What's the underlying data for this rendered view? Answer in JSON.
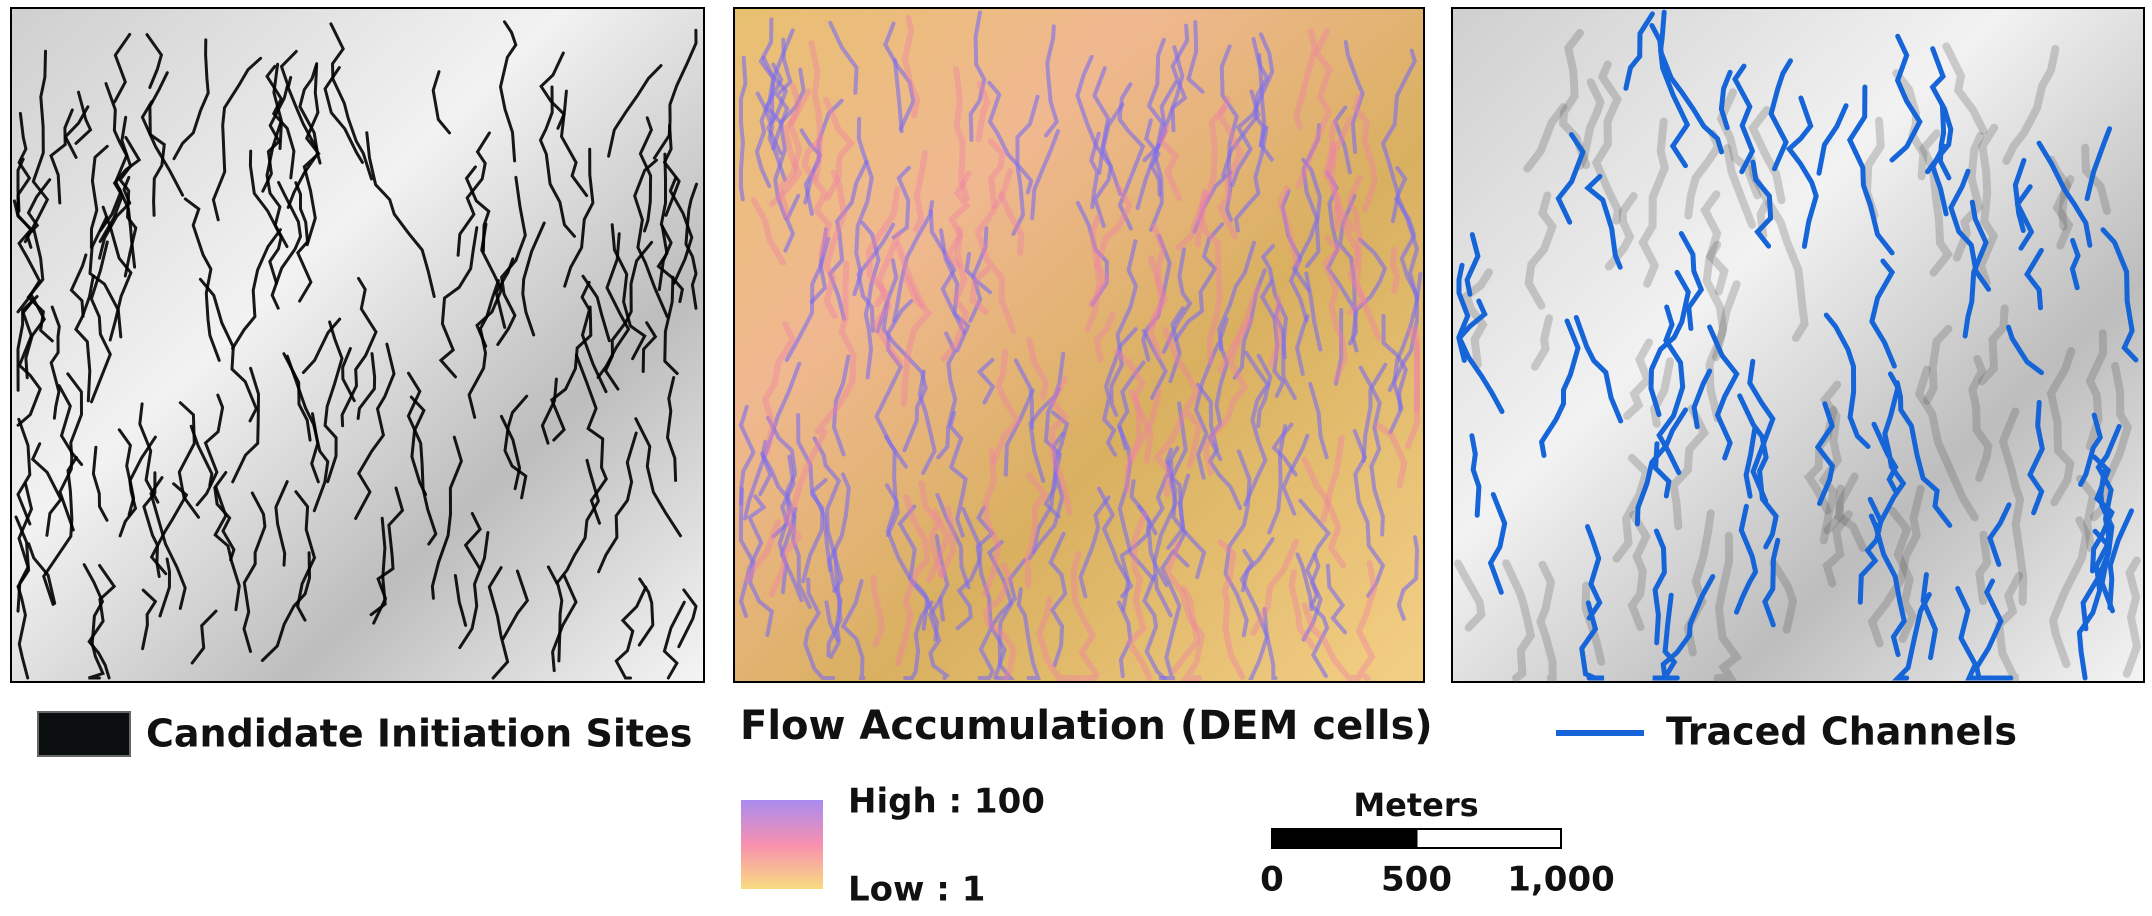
{
  "legend_left": {
    "label": "Candidate Initiation Sites"
  },
  "legend_middle": {
    "title": "Flow Accumulation (DEM cells)",
    "high": "High : 100",
    "low": "Low : 1"
  },
  "legend_right": {
    "label": "Traced Channels"
  },
  "scale_bar": {
    "title": "Meters",
    "ticks": [
      0,
      500,
      {
        "value": 1000,
        "label": "1,000"
      }
    ]
  }
}
